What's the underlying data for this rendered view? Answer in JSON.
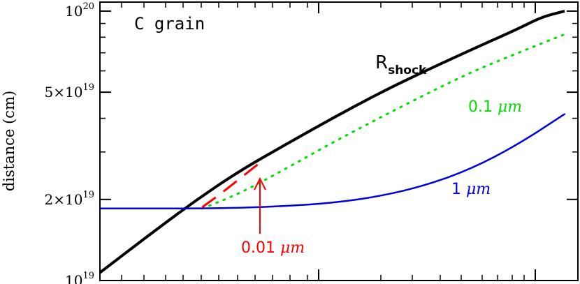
{
  "chart_data": {
    "type": "line",
    "title": "C grain",
    "xlabel": "",
    "ylabel": "distance (cm)",
    "y_scale": "log",
    "ylim": [
      1e+19,
      1.08e+20
    ],
    "xlim": [
      0,
      1
    ],
    "y_ticks": [
      {
        "value": 1e+19,
        "mantissa": "",
        "base": "10",
        "exp": "19"
      },
      {
        "value": 2e+19,
        "mantissa": "2×",
        "base": "10",
        "exp": "19"
      },
      {
        "value": 5e+19,
        "mantissa": "5×",
        "base": "10",
        "exp": "19"
      },
      {
        "value": 1e+20,
        "mantissa": "",
        "base": "10",
        "exp": "20"
      }
    ],
    "grid": false,
    "series": [
      {
        "name": "R",
        "name_sub": "shock",
        "color": "#000000",
        "style": "solid",
        "x": [
          0.0,
          0.1,
          0.2,
          0.3,
          0.4,
          0.5,
          0.6,
          0.7,
          0.8,
          0.9,
          0.95,
          1.0
        ],
        "y": [
          1.07e+19,
          1.45e+19,
          1.95e+19,
          2.55e+19,
          3.2e+19,
          4e+19,
          4.95e+19,
          6e+19,
          7.2e+19,
          8.6e+19,
          9.5e+19,
          1e+20
        ]
      },
      {
        "name": "0.1",
        "name_unit": "μm",
        "color": "#00dd00",
        "style": "dotted",
        "x": [
          0.22,
          0.3,
          0.4,
          0.5,
          0.6,
          0.7,
          0.8,
          0.9,
          1.0
        ],
        "y": [
          1.85e+19,
          2.1e+19,
          2.6e+19,
          3.25e+19,
          4e+19,
          4.9e+19,
          5.95e+19,
          7e+19,
          8.2e+19
        ]
      },
      {
        "name": "1",
        "name_unit": "μm",
        "color": "#0000dd",
        "style": "solid",
        "x": [
          0.0,
          0.1,
          0.2,
          0.3,
          0.4,
          0.5,
          0.6,
          0.7,
          0.8,
          0.9,
          1.0
        ],
        "y": [
          1.85e+19,
          1.85e+19,
          1.85e+19,
          1.86e+19,
          1.89e+19,
          1.94e+19,
          2.05e+19,
          2.25e+19,
          2.6e+19,
          3.2e+19,
          4.15e+19
        ]
      },
      {
        "name": "0.01",
        "name_unit": "μm",
        "color": "#ff0000",
        "style": "dashed",
        "x": [
          0.22,
          0.26,
          0.3,
          0.34
        ],
        "y": [
          1.87e+19,
          2.1e+19,
          2.38e+19,
          2.7e+19
        ]
      }
    ]
  }
}
